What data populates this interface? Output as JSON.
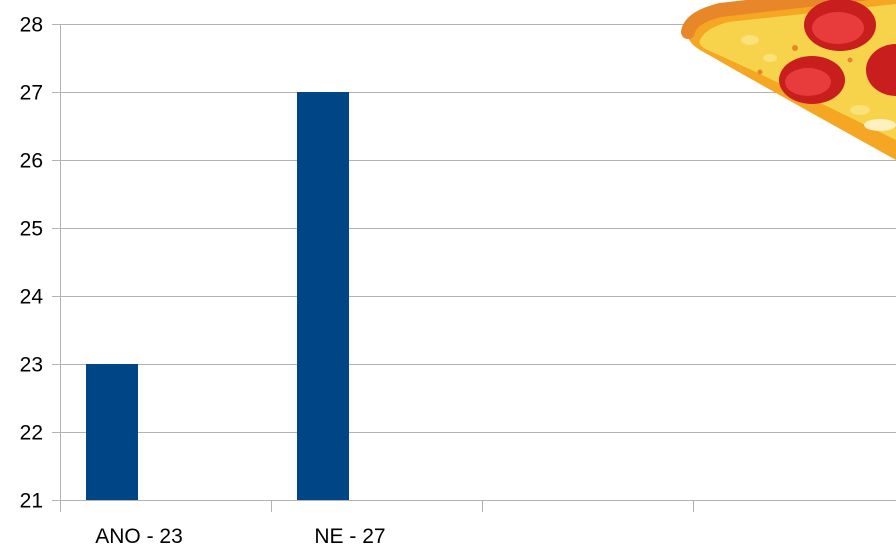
{
  "chart_data": {
    "type": "bar",
    "categories": [
      "ANO - 23",
      "NE - 27",
      "",
      ""
    ],
    "values": [
      23,
      27,
      null,
      null
    ],
    "title": "",
    "xlabel": "",
    "ylabel": "",
    "ylim": [
      21,
      28
    ],
    "yticks": [
      "21",
      "22",
      "23",
      "24",
      "25",
      "26",
      "27",
      "28"
    ],
    "grid": true,
    "bar_color": "#004586",
    "grid_color": "#b3b3b3"
  },
  "decoration": {
    "icon": "pizza-slice-icon"
  }
}
